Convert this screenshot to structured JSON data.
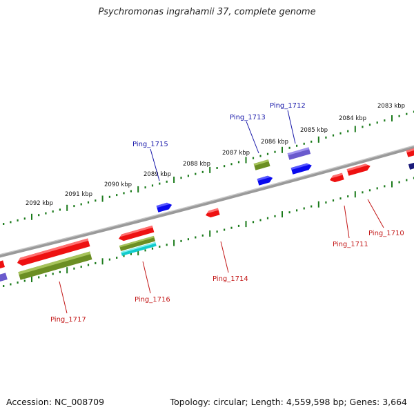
{
  "title": "Psychromonas ingrahamii 37, complete genome",
  "footer": {
    "accession": "Accession: NC_008709",
    "summary": "Topology: circular; Length: 4,559,598 bp; Genes: 3,664"
  },
  "ruler_labels": [
    "2083 kbp",
    "2084 kbp",
    "2085 kbp",
    "2086 kbp",
    "2087 kbp",
    "2088 kbp",
    "2089 kbp",
    "2090 kbp",
    "2091 kbp",
    "2092 kbp"
  ],
  "gene_labels_top": [
    "Ping_1712",
    "Ping_1713",
    "Ping_1715"
  ],
  "gene_labels_bottom": [
    "Ping_1710",
    "Ping_1711",
    "Ping_1714",
    "Ping_1716",
    "Ping_1717"
  ],
  "colors": {
    "backbone": "#8c8c8c",
    "tick": "#1a7a1a",
    "red": "#ee1111",
    "olive": "#6b8e23",
    "blue": "#0a0aee",
    "purple": "#6a5acd",
    "cyan": "#11cccc",
    "label_top": "#1515a8",
    "label_bottom": "#c21515"
  }
}
